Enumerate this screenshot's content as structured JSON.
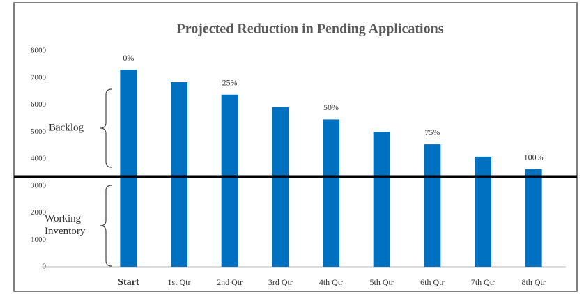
{
  "chart_data": {
    "type": "bar",
    "title": "Projected Reduction in Pending Applications",
    "categories": [
      "Start",
      "1st Qtr",
      "2nd Qtr",
      "3rd Qtr",
      "4th Qtr",
      "5th Qtr",
      "6th Qtr",
      "7th Qtr",
      "8th Qtr"
    ],
    "values": [
      7300,
      6840,
      6380,
      5920,
      5460,
      5000,
      4540,
      4080,
      3620
    ],
    "color": "#0070c0",
    "ylim": [
      0,
      8000
    ],
    "yticks": [
      0,
      1000,
      2000,
      3000,
      4000,
      5000,
      6000,
      7000,
      8000
    ],
    "grid": false,
    "percent_reduction": {
      "values": [
        0,
        null,
        25,
        null,
        50,
        null,
        75,
        null,
        100
      ],
      "value_labels": [
        "0%",
        null,
        "25%",
        null,
        "50%",
        null,
        "75%",
        null,
        "100%"
      ]
    },
    "threshold": 3350,
    "annotations": [
      "Backlog",
      "Working Inventory"
    ]
  }
}
